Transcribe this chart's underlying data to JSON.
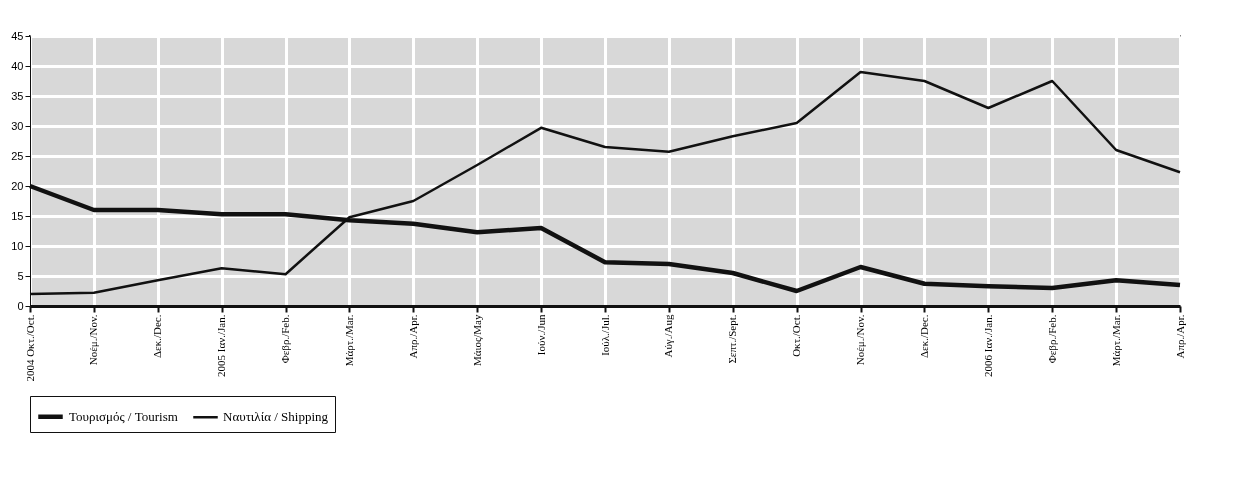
{
  "chart_data": {
    "type": "line",
    "categories": [
      "2004 Οκτ./Oct.",
      "Νοέμ./Nov.",
      "Δεκ./Dec.",
      "2005 Ιαν./Jan.",
      "Φεβρ./Feb.",
      "Μάρτ./Mar.",
      "Απρ./Apr.",
      "Μάιος/May",
      "Ιούν./Jun",
      "Ιούλ./Jul.",
      "Αύγ./Aug",
      "Σεπτ./Sept.",
      "Οκτ./Oct.",
      "Νοέμ./Nov.",
      "Δεκ./Dec.",
      "2006 Ιαν./Jan.",
      "Φεβρ./Feb.",
      "Μάρτ./Mar.",
      "Απρ./Apr."
    ],
    "series": [
      {
        "name": "Τουρισμός / Tourism",
        "color": "#111111",
        "values": [
          20,
          16,
          16,
          15.3,
          15.3,
          14.3,
          13.7,
          12.3,
          13,
          7.3,
          7,
          5.5,
          2.5,
          6.5,
          3.7,
          3.3,
          3,
          4.3,
          3.5
        ]
      },
      {
        "name": "Ναυτιλία / Shipping",
        "color": "#111111",
        "values": [
          2,
          2.2,
          4.3,
          6.3,
          5.3,
          14.8,
          17.5,
          23.5,
          29.7,
          26.5,
          25.7,
          28.3,
          30.5,
          39,
          37.5,
          33,
          37.5,
          26,
          22.3
        ]
      }
    ],
    "ylim": [
      0,
      45
    ],
    "yticks": [
      0,
      5,
      10,
      15,
      20,
      25,
      30,
      35,
      40,
      45
    ],
    "grid": true,
    "legend": "bottom",
    "marker": "none",
    "line_style": "solid"
  }
}
